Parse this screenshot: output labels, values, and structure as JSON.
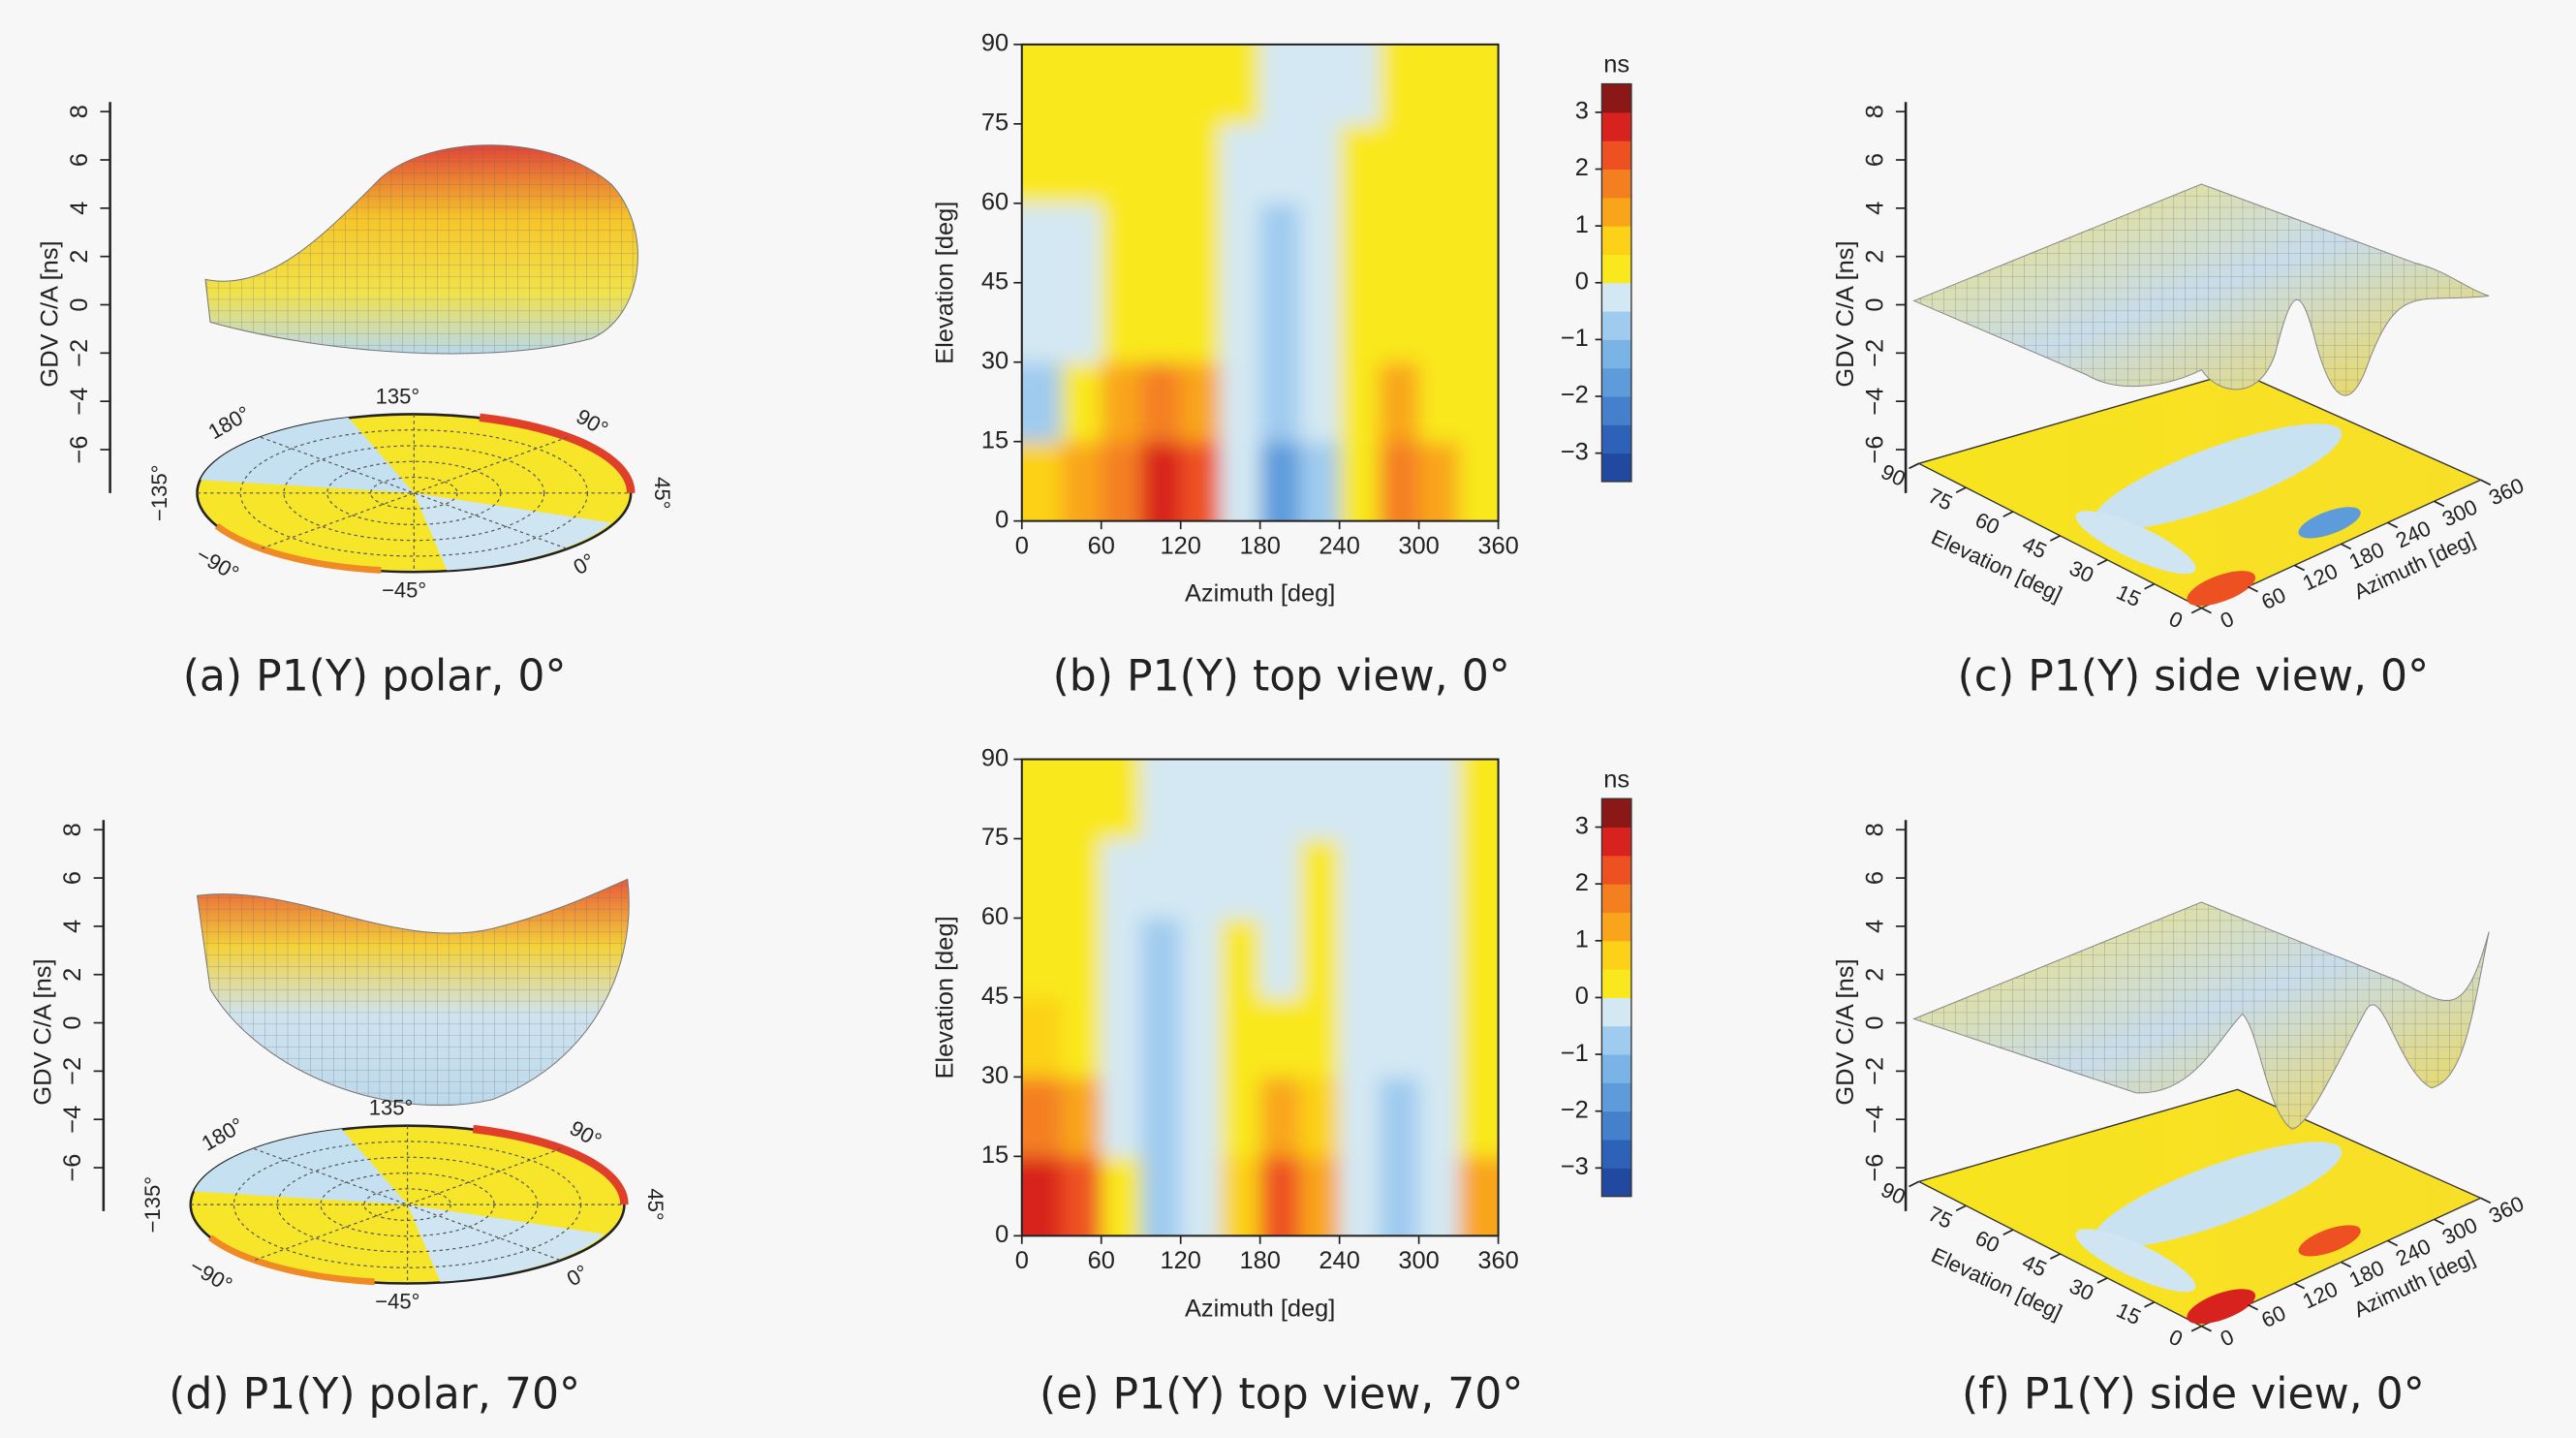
{
  "chart_data": [
    {
      "type": "polar3d",
      "caption": "(a) P1(Y) polar, 0°",
      "zlabel": "GDV C/A [ns]",
      "zlim": [
        -7.8,
        8.4
      ],
      "zticks": [
        {
          "value": -6,
          "label": "−6"
        },
        {
          "value": -4,
          "label": "−4"
        },
        {
          "value": -2,
          "label": "−2"
        },
        0,
        2,
        4,
        6,
        8
      ],
      "angle_labels": [
        "135°",
        "90°",
        "45°",
        "0°",
        "−45°",
        "−90°",
        "−135°",
        "180°"
      ]
    },
    {
      "type": "heatmap",
      "caption": "(b) P1(Y) top view, 0°",
      "xlabel": "Azimuth [deg]",
      "ylabel": "Elevation [deg]",
      "xlim": [
        0,
        360
      ],
      "xticks": [
        0,
        60,
        120,
        180,
        240,
        300,
        360
      ],
      "ylim": [
        0,
        90
      ],
      "yticks": [
        0,
        15,
        30,
        45,
        60,
        75,
        90
      ],
      "x_edges": [
        0,
        30,
        60,
        90,
        120,
        150,
        180,
        210,
        240,
        270,
        300,
        330,
        360
      ],
      "y_edges": [
        0,
        15,
        30,
        45,
        60,
        75,
        90
      ],
      "values": [
        [
          0.6,
          1.3,
          1.8,
          2.6,
          2.2,
          -0.4,
          -2.0,
          -0.6,
          0.4,
          1.6,
          1.0,
          0.3
        ],
        [
          -0.6,
          0.4,
          1.2,
          1.5,
          1.0,
          -0.4,
          -1.0,
          -0.3,
          0.3,
          1.0,
          0.4,
          0.2
        ],
        [
          -0.3,
          -0.2,
          0.4,
          0.4,
          0.3,
          -0.3,
          -0.8,
          -0.3,
          0.3,
          0.3,
          0.3,
          0.2
        ],
        [
          -0.3,
          -0.2,
          0.3,
          0.3,
          0.3,
          -0.3,
          -0.7,
          -0.3,
          0.3,
          0.3,
          0.3,
          0.2
        ],
        [
          0.3,
          0.3,
          0.3,
          0.3,
          0.3,
          -0.2,
          -0.3,
          -0.2,
          0.3,
          0.3,
          0.3,
          0.3
        ],
        [
          0.3,
          0.3,
          0.3,
          0.3,
          0.3,
          0.2,
          -0.1,
          -0.1,
          -0.2,
          0.3,
          0.3,
          0.3
        ]
      ],
      "colorbar": {
        "label": "ns",
        "lim": [
          -3.5,
          3.5
        ],
        "ticks": [
          {
            "value": -3,
            "label": "−3"
          },
          {
            "value": -2,
            "label": "−2"
          },
          {
            "value": -1,
            "label": "−1"
          },
          0,
          1,
          2,
          3
        ],
        "colors": [
          "#2149a0",
          "#2e62b8",
          "#4580cc",
          "#5d9bdb",
          "#7ab3e6",
          "#9fcbef",
          "#d3e8f3",
          "#f9e81e",
          "#fcd117",
          "#f9a51b",
          "#f47f20",
          "#ee5121",
          "#d8221d",
          "#8b1717"
        ]
      }
    },
    {
      "type": "surface3d",
      "caption": "(c) P1(Y) side view, 0°",
      "zlabel": "GDV C/A [ns]",
      "zlim": [
        -7.8,
        8.4
      ],
      "zticks": [
        {
          "value": -6,
          "label": "−6"
        },
        {
          "value": -4,
          "label": "−4"
        },
        {
          "value": -2,
          "label": "−2"
        },
        0,
        2,
        4,
        6,
        8
      ],
      "xlabel": "Azimuth [deg]",
      "xlim": [
        0,
        360
      ],
      "xticks": [
        0,
        60,
        120,
        180,
        240,
        300,
        360
      ],
      "ylabel": "Elevation [deg]",
      "ylim": [
        90,
        0
      ],
      "yticks": [
        90,
        75,
        60,
        45,
        30,
        15,
        0
      ]
    },
    {
      "type": "polar3d",
      "caption": "(d) P1(Y) polar, 70°",
      "zlabel": "GDV C/A [ns]",
      "zlim": [
        -7.8,
        8.4
      ],
      "zticks": [
        {
          "value": -6,
          "label": "−6"
        },
        {
          "value": -4,
          "label": "−4"
        },
        {
          "value": -2,
          "label": "−2"
        },
        0,
        2,
        4,
        6,
        8
      ],
      "angle_labels": [
        "135°",
        "90°",
        "45°",
        "0°",
        "−45°",
        "−90°",
        "−135°",
        "180°"
      ]
    },
    {
      "type": "heatmap",
      "caption": "(e) P1(Y) top view, 70°",
      "xlabel": "Azimuth [deg]",
      "ylabel": "Elevation [deg]",
      "xlim": [
        0,
        360
      ],
      "xticks": [
        0,
        60,
        120,
        180,
        240,
        300,
        360
      ],
      "ylim": [
        0,
        90
      ],
      "yticks": [
        0,
        15,
        30,
        45,
        60,
        75,
        90
      ],
      "x_edges": [
        0,
        30,
        60,
        90,
        120,
        150,
        180,
        210,
        240,
        270,
        300,
        330,
        360
      ],
      "y_edges": [
        0,
        15,
        30,
        45,
        60,
        75,
        90
      ],
      "values": [
        [
          2.8,
          2.0,
          0.3,
          -1.0,
          -0.5,
          0.5,
          2.2,
          1.2,
          -0.4,
          -0.8,
          -0.4,
          1.0
        ],
        [
          1.5,
          1.2,
          -0.3,
          -1.0,
          -0.4,
          0.3,
          1.2,
          0.6,
          -0.3,
          -0.6,
          -0.3,
          0.4
        ],
        [
          0.6,
          0.4,
          -0.3,
          -0.9,
          -0.3,
          0.3,
          0.3,
          0.3,
          -0.3,
          -0.5,
          -0.2,
          0.3
        ],
        [
          0.3,
          0.3,
          -0.3,
          -0.7,
          -0.2,
          0.3,
          -0.2,
          0.3,
          -0.2,
          -0.3,
          -0.2,
          0.3
        ],
        [
          0.3,
          0.2,
          -0.2,
          -0.2,
          -0.2,
          -0.2,
          -0.2,
          0.3,
          -0.2,
          -0.2,
          -0.2,
          0.3
        ],
        [
          0.3,
          0.3,
          0.2,
          -0.2,
          -0.2,
          -0.2,
          -0.2,
          -0.2,
          -0.2,
          -0.2,
          -0.2,
          0.3
        ]
      ],
      "colorbar": {
        "label": "ns",
        "lim": [
          -3.5,
          3.5
        ],
        "ticks": [
          {
            "value": -3,
            "label": "−3"
          },
          {
            "value": -2,
            "label": "−2"
          },
          {
            "value": -1,
            "label": "−1"
          },
          0,
          1,
          2,
          3
        ],
        "colors": [
          "#2149a0",
          "#2e62b8",
          "#4580cc",
          "#5d9bdb",
          "#7ab3e6",
          "#9fcbef",
          "#d3e8f3",
          "#f9e81e",
          "#fcd117",
          "#f9a51b",
          "#f47f20",
          "#ee5121",
          "#d8221d",
          "#8b1717"
        ]
      }
    },
    {
      "type": "surface3d",
      "caption": "(f) P1(Y) side view, 0°",
      "zlabel": "GDV C/A [ns]",
      "zlim": [
        -7.8,
        8.4
      ],
      "zticks": [
        {
          "value": -6,
          "label": "−6"
        },
        {
          "value": -4,
          "label": "−4"
        },
        {
          "value": -2,
          "label": "−2"
        },
        0,
        2,
        4,
        6,
        8
      ],
      "xlabel": "Azimuth [deg]",
      "xlim": [
        0,
        360
      ],
      "xticks": [
        0,
        60,
        120,
        180,
        240,
        300,
        360
      ],
      "ylabel": "Elevation [deg]",
      "ylim": [
        90,
        0
      ],
      "yticks": [
        90,
        75,
        60,
        45,
        30,
        15,
        0
      ]
    }
  ]
}
